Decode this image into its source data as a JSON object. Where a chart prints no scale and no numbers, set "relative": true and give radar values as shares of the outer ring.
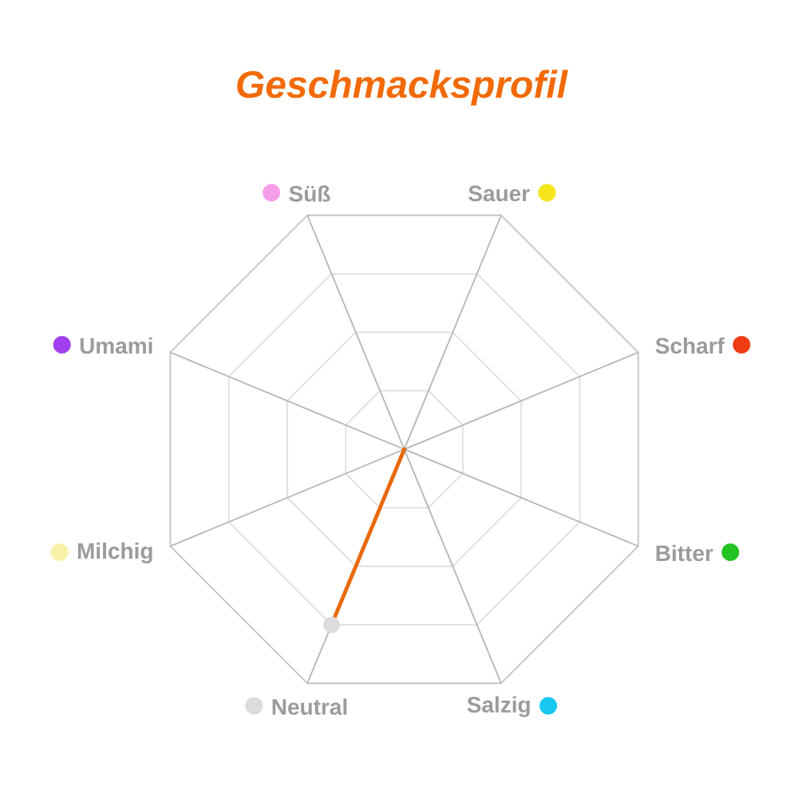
{
  "chart_data": {
    "type": "radar",
    "title": "Geschmacksprofil",
    "categories": [
      "Süß",
      "Sauer",
      "Scharf",
      "Bitter",
      "Salzig",
      "Neutral",
      "Milchig",
      "Umami"
    ],
    "colors": [
      "#f59ee8",
      "#f5e51a",
      "#f03c14",
      "#22c322",
      "#18c8f0",
      "#dcdcdc",
      "#f7f2a8",
      "#a040f0"
    ],
    "relative": true,
    "grid": true,
    "marker": "circle",
    "series": [
      {
        "color": "#e8690c",
        "values": [
          0,
          0,
          0,
          0,
          0,
          0.75,
          0,
          0
        ]
      }
    ]
  }
}
